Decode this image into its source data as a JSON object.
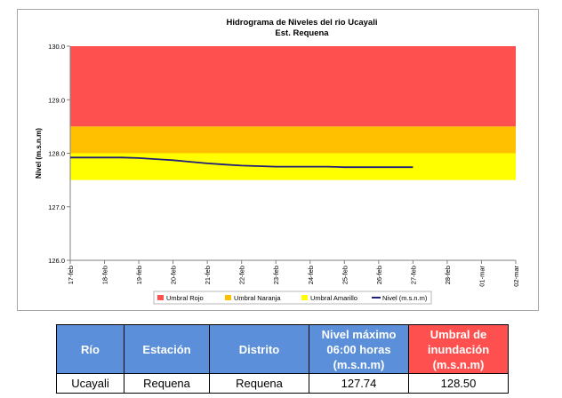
{
  "chart_data": {
    "type": "line",
    "title": "Hidrograma de Niveles del rio Ucayali",
    "subtitle": "Est. Requena",
    "ylabel": "Nivel (m.s.n.m)",
    "xlabel": "",
    "ylim": [
      126.0,
      130.0
    ],
    "yticks": [
      "126.0",
      "127.0",
      "128.0",
      "129.0",
      "130.0"
    ],
    "categories": [
      "17-feb",
      "18-feb",
      "19-feb",
      "20-feb",
      "21-feb",
      "22-feb",
      "23-feb",
      "24-feb",
      "25-feb",
      "26-feb",
      "27-feb",
      "28-feb",
      "01-mar",
      "02-mar"
    ],
    "bands": [
      {
        "name": "Umbral Rojo",
        "from": 128.5,
        "to": 130.0,
        "color": "#ff5050"
      },
      {
        "name": "Umbral Naranja",
        "from": 128.0,
        "to": 128.5,
        "color": "#ffc000"
      },
      {
        "name": "Umbral Amarillo",
        "from": 127.5,
        "to": 128.0,
        "color": "#ffff00"
      }
    ],
    "series": [
      {
        "name": "Nivel (m.s.n.m)",
        "color": "#1f1f7a",
        "x": [
          0,
          0.5,
          1,
          1.5,
          2,
          2.5,
          3,
          3.5,
          4,
          4.5,
          5,
          5.5,
          6,
          6.5,
          7,
          7.5,
          8,
          8.5,
          9,
          9.5,
          10
        ],
        "values": [
          127.92,
          127.92,
          127.92,
          127.92,
          127.91,
          127.89,
          127.87,
          127.84,
          127.81,
          127.79,
          127.77,
          127.76,
          127.75,
          127.75,
          127.75,
          127.75,
          127.74,
          127.74,
          127.74,
          127.74,
          127.74
        ]
      }
    ],
    "legend": [
      "Umbral Rojo",
      "Umbral Naranja",
      "Umbral Amarillo",
      "Nivel (m.s.n.m)"
    ],
    "legend_position": "bottom",
    "grid": false
  },
  "table": {
    "headers": [
      "Río",
      "Estación",
      "Distrito",
      [
        "Nivel máximo",
        "06:00 horas",
        "(m.s.n.m)"
      ],
      [
        "Umbral de",
        "inundación",
        "(m.s.n.m)"
      ]
    ],
    "row": [
      "Ucayali",
      "Requena",
      "Requena",
      "127.74",
      "128.50"
    ],
    "colors": {
      "header_blue": "#5b8fd9",
      "header_red": "#ff5050"
    }
  }
}
